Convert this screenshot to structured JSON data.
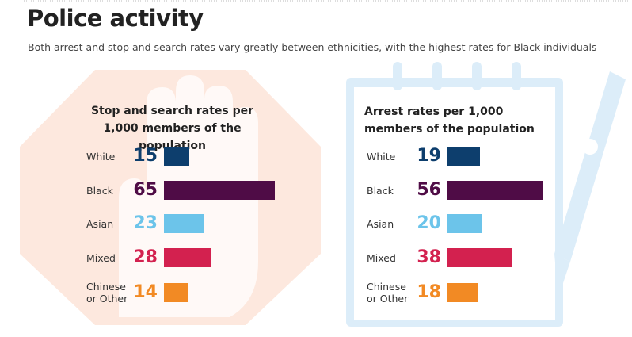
{
  "header": {
    "title": "Police activity",
    "subtitle": "Both arrest and stop and search rates vary greatly between ethnicities, with the highest rates for Black individuals"
  },
  "chart_data": [
    {
      "type": "bar",
      "orientation": "horizontal",
      "title": "Stop and search rates per 1,000 members of the population",
      "categories": [
        "White",
        "Black",
        "Asian",
        "Mixed",
        "Chinese or Other"
      ],
      "values": [
        15,
        65,
        23,
        28,
        14
      ],
      "colors": [
        "#0d3e6d",
        "#4f0c46",
        "#6cc4ea",
        "#d3214f",
        "#f28a24"
      ]
    },
    {
      "type": "bar",
      "orientation": "horizontal",
      "title": "Arrest rates per 1,000 members of the population",
      "categories": [
        "White",
        "Black",
        "Asian",
        "Mixed",
        "Chinese or Other"
      ],
      "values": [
        19,
        56,
        20,
        38,
        18
      ],
      "colors": [
        "#0d3e6d",
        "#4f0c46",
        "#6cc4ea",
        "#d3214f",
        "#f28a24"
      ]
    }
  ]
}
